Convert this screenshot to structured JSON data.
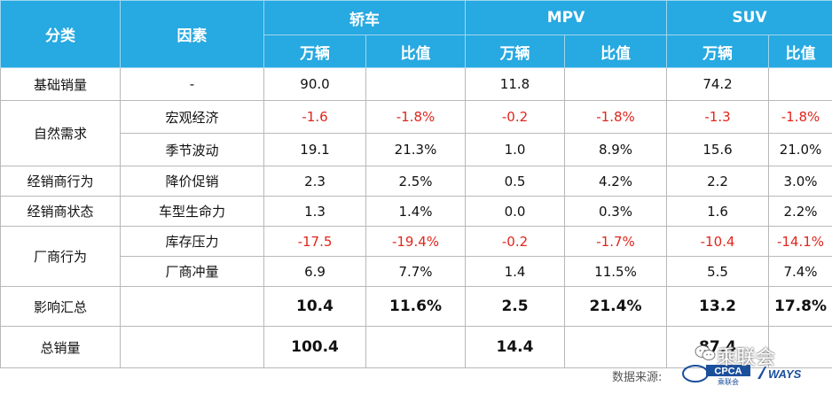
{
  "header": {
    "category": "分类",
    "factor": "因素",
    "groups": [
      "轿车",
      "MPV",
      "SUV"
    ],
    "sub": [
      "万辆",
      "比值",
      "万辆",
      "比值",
      "万辆",
      "比值"
    ]
  },
  "rows": [
    {
      "category": "基础销量",
      "factor": "-",
      "values": [
        "90.0",
        "",
        "11.8",
        "",
        "74.2",
        ""
      ]
    },
    {
      "category": "自然需求",
      "factor": "宏观经济",
      "values": [
        "-1.6",
        "-1.8%",
        "-0.2",
        "-1.8%",
        "-1.3",
        "-1.8%"
      ]
    },
    {
      "category": "",
      "factor": "季节波动",
      "values": [
        "19.1",
        "21.3%",
        "1.0",
        "8.9%",
        "15.6",
        "21.0%"
      ]
    },
    {
      "category": "经销商行为",
      "factor": "降价促销",
      "values": [
        "2.3",
        "2.5%",
        "0.5",
        "4.2%",
        "2.2",
        "3.0%"
      ]
    },
    {
      "category": "经销商状态",
      "factor": "车型生命力",
      "values": [
        "1.3",
        "1.4%",
        "0.0",
        "0.3%",
        "1.6",
        "2.2%"
      ]
    },
    {
      "category": "厂商行为",
      "factor": "库存压力",
      "values": [
        "-17.5",
        "-19.4%",
        "-0.2",
        "-1.7%",
        "-10.4",
        "-14.1%"
      ]
    },
    {
      "category": "",
      "factor": "厂商冲量",
      "values": [
        "6.9",
        "7.7%",
        "1.4",
        "11.5%",
        "5.5",
        "7.4%"
      ]
    },
    {
      "category": "影响汇总",
      "factor": "",
      "values": [
        "10.4",
        "11.6%",
        "2.5",
        "21.4%",
        "13.2",
        "17.8%"
      ]
    },
    {
      "category": "总销量",
      "factor": "",
      "values": [
        "100.4",
        "",
        "14.4",
        "",
        "87.4",
        ""
      ]
    }
  ],
  "footer": {
    "source_label": "数据来源:",
    "logo_cpca": "CPCA",
    "logo_cpca_sub": "乘联会",
    "logo_ways": "WAYS",
    "watermark": "乘联会"
  },
  "colors": {
    "header_bg": "#27a9e1",
    "negative": "#e0261c"
  }
}
